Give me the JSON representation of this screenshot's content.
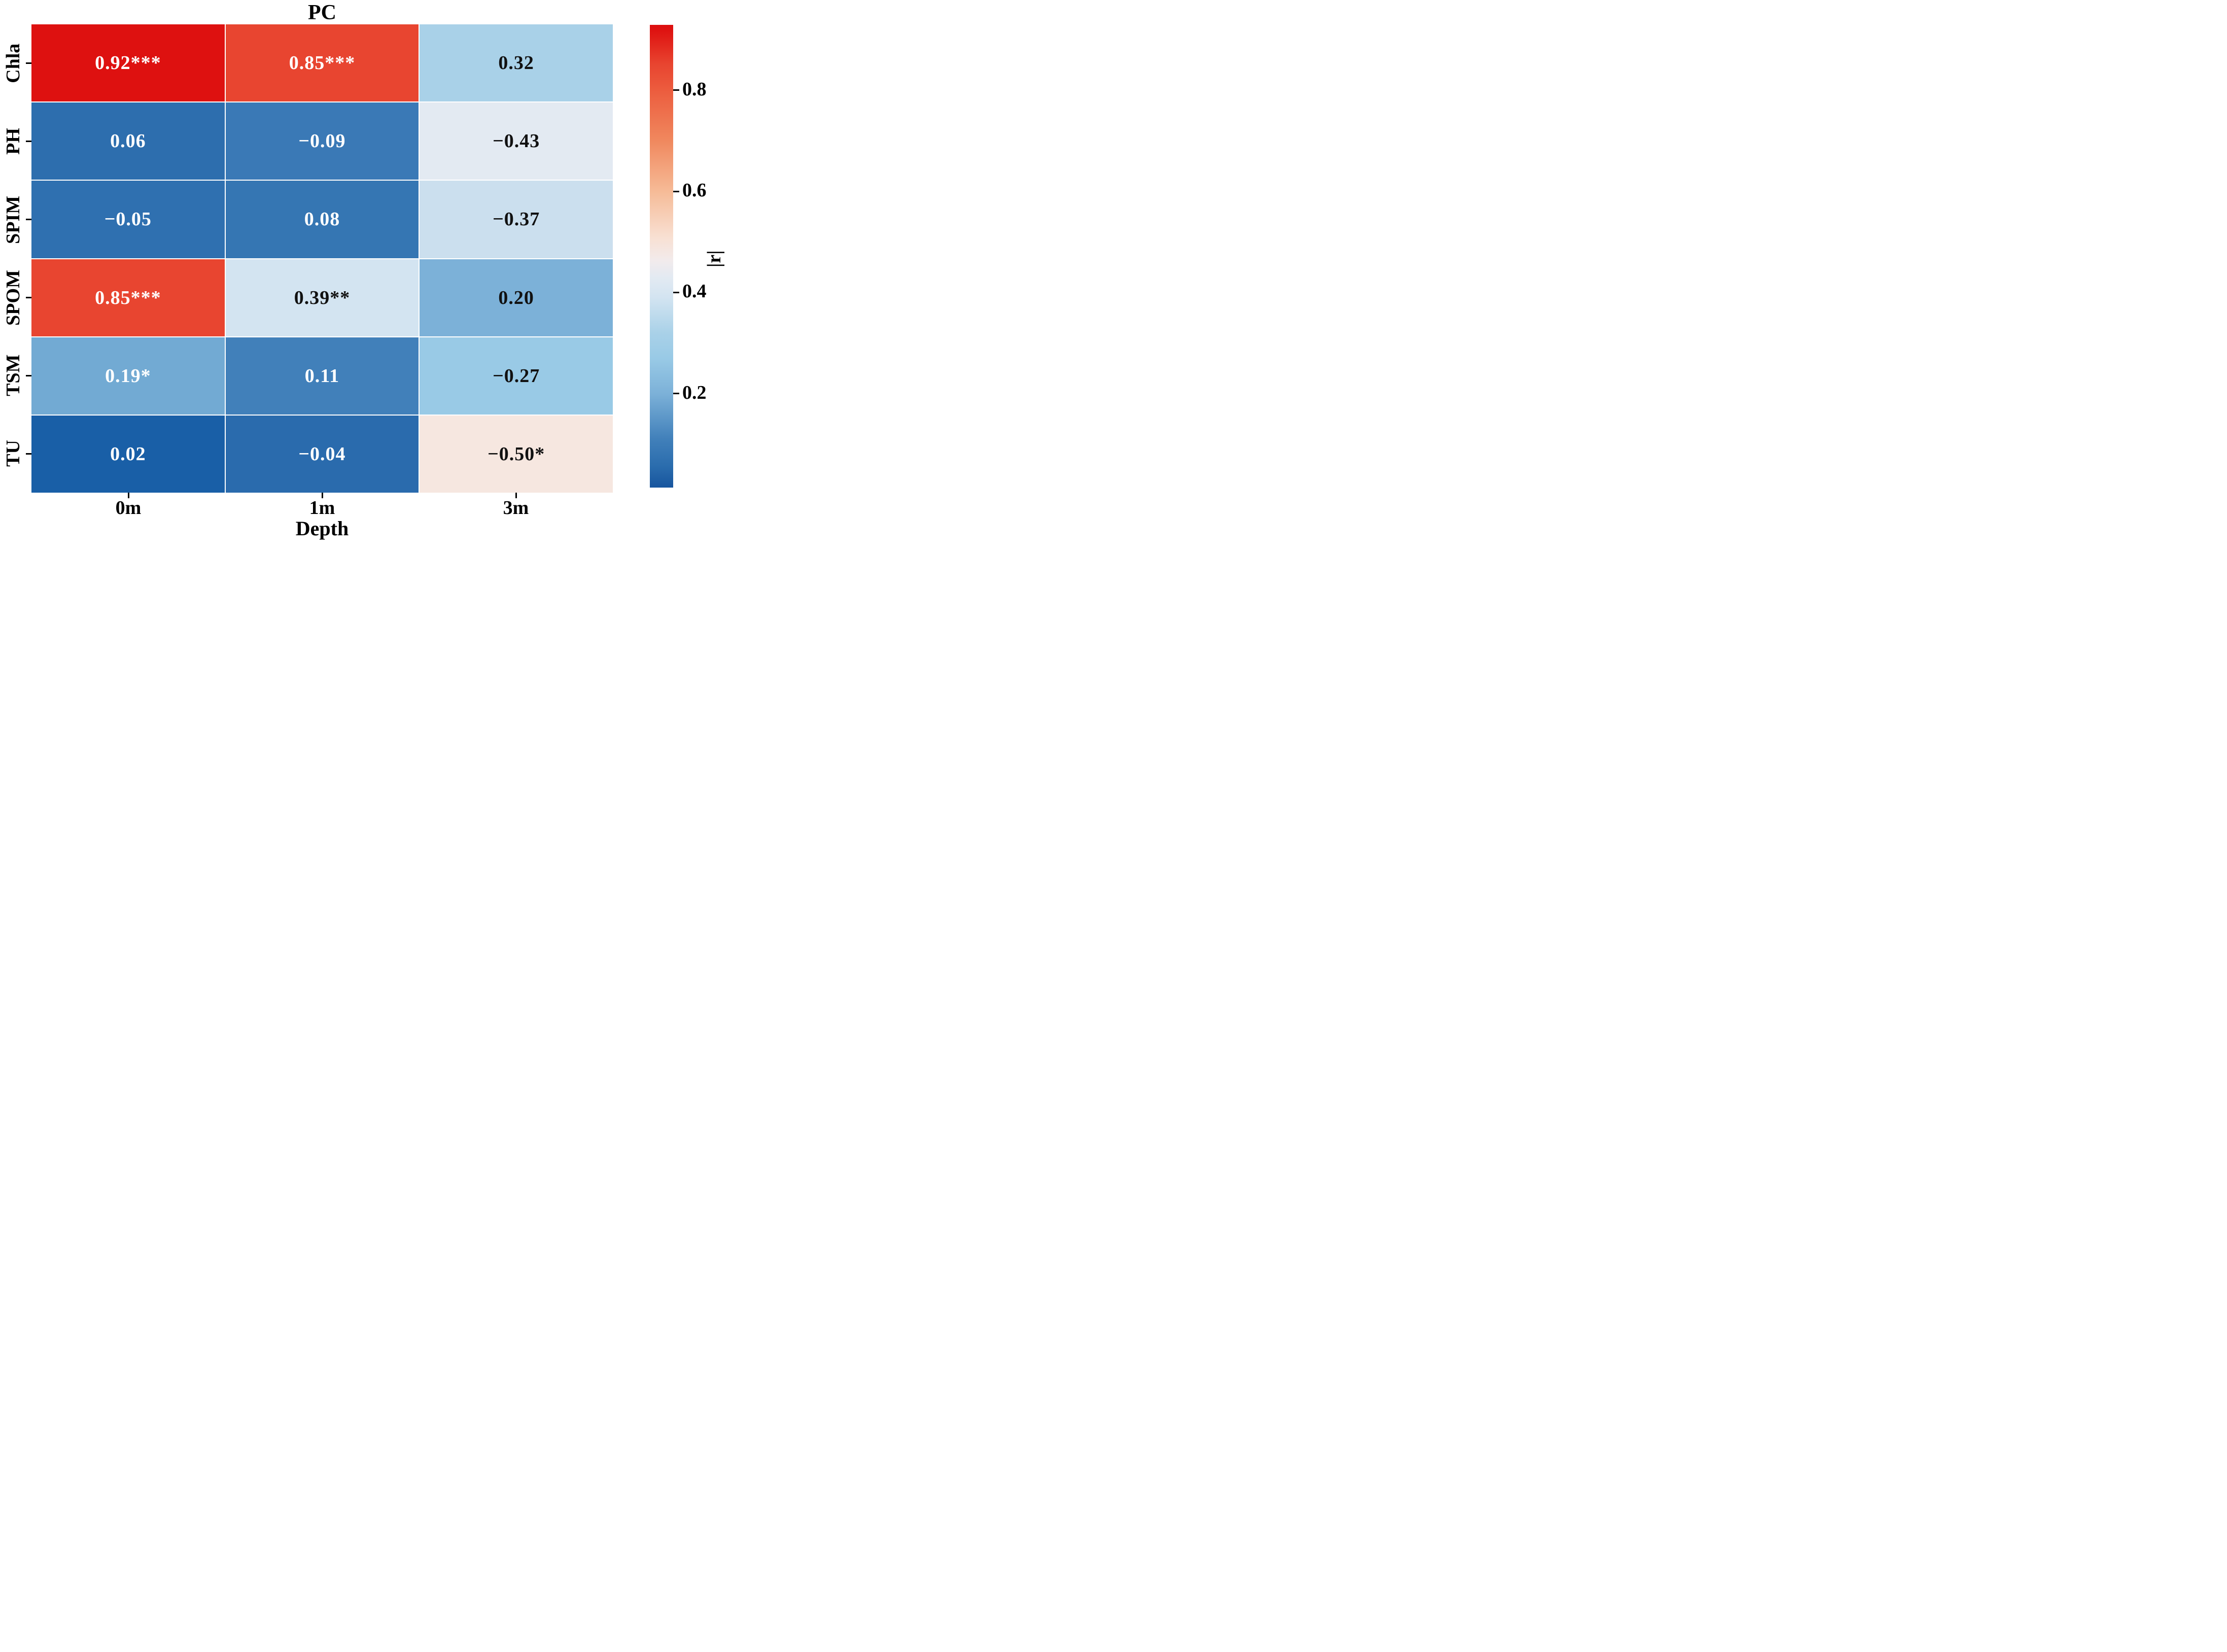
{
  "chart_data": {
    "type": "heatmap",
    "title": "PC",
    "xlabel": "Depth",
    "x_categories": [
      "0m",
      "1m",
      "3m"
    ],
    "y_categories": [
      "Chla",
      "PH",
      "SPIM",
      "SPOM",
      "TSM",
      "TU"
    ],
    "legend_position": "right-colorbar",
    "grid": false,
    "cells": [
      [
        {
          "label": "0.92***",
          "value": 0.92,
          "bg": "#de1110",
          "fg": "#ffffff"
        },
        {
          "label": "0.85***",
          "value": 0.85,
          "bg": "#e84530",
          "fg": "#ffffff"
        },
        {
          "label": "0.32",
          "value": 0.32,
          "bg": "#a9d1e8",
          "fg": "#111111"
        }
      ],
      [
        {
          "label": "0.06",
          "value": 0.06,
          "bg": "#2d6eae",
          "fg": "#ffffff"
        },
        {
          "label": "−0.09",
          "value": -0.09,
          "bg": "#3a79b6",
          "fg": "#ffffff"
        },
        {
          "label": "−0.43",
          "value": -0.43,
          "bg": "#e3eaf2",
          "fg": "#111111"
        }
      ],
      [
        {
          "label": "−0.05",
          "value": -0.05,
          "bg": "#2f70b0",
          "fg": "#ffffff"
        },
        {
          "label": "0.08",
          "value": 0.08,
          "bg": "#3576b3",
          "fg": "#ffffff"
        },
        {
          "label": "−0.37",
          "value": -0.37,
          "bg": "#cbdfee",
          "fg": "#111111"
        }
      ],
      [
        {
          "label": "0.85***",
          "value": 0.85,
          "bg": "#e84530",
          "fg": "#ffffff"
        },
        {
          "label": "0.39**",
          "value": 0.39,
          "bg": "#d3e4f1",
          "fg": "#111111"
        },
        {
          "label": "0.20",
          "value": 0.2,
          "bg": "#7cb1d8",
          "fg": "#111111"
        }
      ],
      [
        {
          "label": "0.19*",
          "value": 0.19,
          "bg": "#72aad3",
          "fg": "#ffffff"
        },
        {
          "label": "0.11",
          "value": 0.11,
          "bg": "#4180ba",
          "fg": "#ffffff"
        },
        {
          "label": "−0.27",
          "value": -0.27,
          "bg": "#99cae6",
          "fg": "#111111"
        }
      ],
      [
        {
          "label": "0.02",
          "value": 0.02,
          "bg": "#195fa7",
          "fg": "#ffffff"
        },
        {
          "label": "−0.04",
          "value": -0.04,
          "bg": "#2a6bad",
          "fg": "#ffffff"
        },
        {
          "label": "−0.50*",
          "value": -0.5,
          "bg": "#f6e7e0",
          "fg": "#111111"
        }
      ]
    ],
    "colorbar": {
      "label": "|r|",
      "range_top": 0.93,
      "range_bottom": 0.01,
      "ticks": [
        {
          "label": "0.8",
          "pct": 14.1
        },
        {
          "label": "0.6",
          "pct": 36.0
        },
        {
          "label": "0.4",
          "pct": 57.8
        },
        {
          "label": "0.2",
          "pct": 79.7
        }
      ],
      "gradient": [
        {
          "color": "#dc0f0f",
          "pos": 0
        },
        {
          "color": "#de1110",
          "pos": 1
        },
        {
          "color": "#e84530",
          "pos": 8.6
        },
        {
          "color": "#ec5c3e",
          "pos": 14.1
        },
        {
          "color": "#f0885e",
          "pos": 25
        },
        {
          "color": "#f6bb97",
          "pos": 36
        },
        {
          "color": "#f8e0d3",
          "pos": 46
        },
        {
          "color": "#f2ebec",
          "pos": 51
        },
        {
          "color": "#e3eaf2",
          "pos": 54.5
        },
        {
          "color": "#d3e4f1",
          "pos": 58.9
        },
        {
          "color": "#a9d1e8",
          "pos": 66.6
        },
        {
          "color": "#99cae6",
          "pos": 72
        },
        {
          "color": "#7cb1d8",
          "pos": 79.7
        },
        {
          "color": "#4180ba",
          "pos": 89.5
        },
        {
          "color": "#2a6cad",
          "pos": 95.5
        },
        {
          "color": "#17559e",
          "pos": 100
        }
      ]
    }
  }
}
